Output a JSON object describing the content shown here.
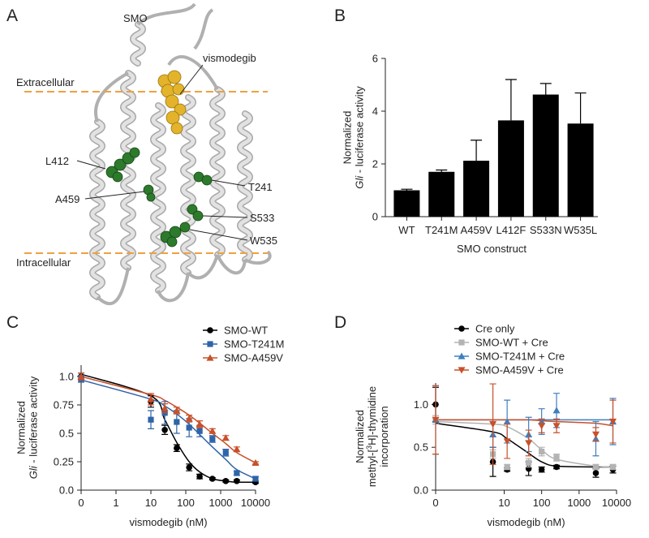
{
  "structure": {
    "panel": "A",
    "protein": "SMO",
    "ligand": "vismodegib",
    "membrane": {
      "top": "Extracellular",
      "bottom": "Intracellular"
    },
    "residues": [
      "L412",
      "A459",
      "T241",
      "S533",
      "W535"
    ]
  },
  "chart_data": [
    {
      "type": "bar",
      "panel": "B",
      "ylabel": [
        [
          {
            "text": "Normalized"
          }
        ],
        [
          {
            "text": "Gli",
            "style": "italic"
          },
          {
            "text": " - luciferase activity"
          }
        ]
      ],
      "xlabel": "SMO construct",
      "categories": [
        "WT",
        "T241M",
        "A459V",
        "L412F",
        "S533N",
        "W535L"
      ],
      "values": [
        1.0,
        1.7,
        2.12,
        3.65,
        4.63,
        3.53
      ],
      "errors": [
        0.04,
        0.07,
        0.78,
        1.55,
        0.42,
        1.16
      ],
      "color": "#000000",
      "ylim": [
        0,
        6
      ],
      "yticks": [
        0,
        2,
        4,
        6
      ]
    },
    {
      "type": "line",
      "panel": "C",
      "ylabel": [
        [
          {
            "text": "Normalized"
          }
        ],
        [
          {
            "text": "Gli",
            "style": "italic"
          },
          {
            "text": " - luciferase activity"
          }
        ]
      ],
      "xlabel": "vismodegib (nM)",
      "log_x": true,
      "x": [
        0,
        10,
        25,
        55,
        125,
        250,
        580,
        1400,
        2900,
        10000
      ],
      "xlim": [
        0,
        10000
      ],
      "xticks": [
        0,
        1,
        10,
        100,
        1000,
        10000
      ],
      "ylim": [
        0,
        1.1
      ],
      "yticks": [
        {
          "value": 0,
          "label": "0.0"
        },
        0.25,
        {
          "value": 0.5,
          "label": "0.5"
        },
        0.75,
        {
          "value": 1,
          "label": "1.0"
        }
      ],
      "legend": "upper right",
      "series": [
        {
          "name": "SMO-WT",
          "color": "#000000",
          "marker": "circle",
          "values": [
            1.0,
            0.78,
            0.53,
            0.37,
            0.2,
            0.12,
            0.1,
            0.08,
            0.08,
            0.07
          ],
          "errors": [
            0.03,
            0.05,
            0.04,
            0.03,
            0.03,
            0.02,
            0.01,
            0.01,
            0.01,
            0.01
          ],
          "fit": [
            1.02,
            0.83,
            0.62,
            0.42,
            0.25,
            0.16,
            0.1,
            0.08,
            0.07,
            0.07
          ]
        },
        {
          "name": "SMO-T241M",
          "color": "#2e64a8",
          "marker": "square",
          "values": [
            0.98,
            0.62,
            0.68,
            0.6,
            0.55,
            0.52,
            0.45,
            0.33,
            0.15,
            0.1
          ],
          "errors": [
            0.03,
            0.08,
            0.1,
            0.1,
            0.08,
            0.05,
            0.03,
            0.03,
            0.02,
            0.02
          ],
          "fit": [
            0.97,
            0.8,
            0.74,
            0.67,
            0.58,
            0.49,
            0.38,
            0.27,
            0.18,
            0.1
          ]
        },
        {
          "name": "SMO-A459V",
          "color": "#c8502a",
          "marker": "triangle-up",
          "values": [
            1.0,
            0.8,
            0.72,
            0.7,
            0.63,
            0.58,
            0.52,
            0.46,
            0.36,
            0.24
          ],
          "errors": [
            0.03,
            0.05,
            0.04,
            0.03,
            0.03,
            0.03,
            0.02,
            0.02,
            0.02,
            0.01
          ],
          "fit": [
            1.0,
            0.84,
            0.79,
            0.73,
            0.66,
            0.59,
            0.5,
            0.41,
            0.33,
            0.24
          ]
        }
      ]
    },
    {
      "type": "line",
      "panel": "D",
      "ylabel": [
        [
          {
            "text": "Normalized"
          }
        ],
        [
          {
            "text": "methyl-["
          },
          {
            "text": "3",
            "style": "superscript"
          },
          {
            "text": "H]-thymidine"
          }
        ],
        [
          {
            "text": "incorporation"
          }
        ]
      ],
      "xlabel": "vismodegib (nM)",
      "log_x": true,
      "x": [
        0,
        5,
        12,
        45,
        100,
        250,
        2800,
        8000
      ],
      "xlim": [
        0,
        10000
      ],
      "xticks": [
        0,
        10,
        100,
        1000,
        10000
      ],
      "ylim": [
        0,
        1.25
      ],
      "yticks": [
        {
          "value": 0,
          "label": "0.0"
        },
        {
          "value": 0.5,
          "label": "0.5"
        },
        {
          "value": 1,
          "label": "1.0"
        }
      ],
      "legend": "upper left",
      "series": [
        {
          "name": "Cre only",
          "color": "#000000",
          "marker": "circle",
          "values": [
            1.0,
            0.33,
            0.24,
            0.25,
            0.24,
            0.27,
            0.2,
            0.24
          ],
          "errors": [
            0.2,
            0.17,
            0.02,
            0.08,
            0.03,
            0.02,
            0.05,
            0.04
          ],
          "fit": [
            0.78,
            0.68,
            0.6,
            0.43,
            0.33,
            0.28,
            0.27,
            0.27
          ]
        },
        {
          "name": "SMO-WT + Cre",
          "color": "#b3b3b3",
          "marker": "square",
          "values": [
            0.82,
            0.42,
            0.27,
            0.32,
            0.45,
            0.38,
            0.27,
            0.27
          ],
          "errors": [
            0.05,
            0.05,
            0.03,
            0.05,
            0.05,
            0.04,
            0.03,
            0.03
          ],
          "fit": [
            0.8,
            0.77,
            0.74,
            0.6,
            0.47,
            0.36,
            0.28,
            0.27
          ]
        },
        {
          "name": "SMO-T241M + Cre",
          "color": "#3f7fc0",
          "marker": "triangle-up",
          "values": [
            0.82,
            0.65,
            0.8,
            0.65,
            0.8,
            0.93,
            0.6,
            0.8
          ],
          "errors": [
            0.4,
            0.15,
            0.25,
            0.2,
            0.15,
            0.2,
            0.2,
            0.27
          ],
          "fit": [
            0.82,
            0.82,
            0.82,
            0.82,
            0.82,
            0.82,
            0.82,
            0.82
          ]
        },
        {
          "name": "SMO-A459V + Cre",
          "color": "#c8502a",
          "marker": "triangle-down",
          "values": [
            0.82,
            0.77,
            0.57,
            0.55,
            0.75,
            0.75,
            0.65,
            0.8
          ],
          "errors": [
            0.4,
            0.47,
            0.2,
            0.15,
            0.08,
            0.08,
            0.08,
            0.25
          ],
          "fit": [
            0.82,
            0.82,
            0.82,
            0.82,
            0.81,
            0.8,
            0.78,
            0.75
          ]
        }
      ]
    }
  ]
}
